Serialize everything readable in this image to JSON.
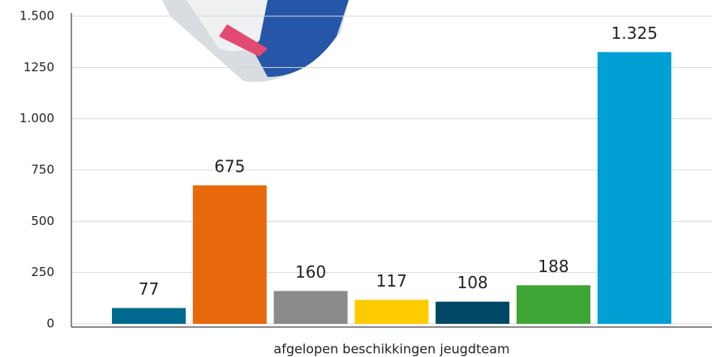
{
  "chart_data": {
    "type": "bar",
    "x_label": "afgelopen beschikkingen jeugdteam",
    "categories": [
      null,
      null,
      null,
      null,
      null,
      null,
      null
    ],
    "values": [
      77,
      675,
      160,
      117,
      108,
      188,
      1325
    ],
    "value_labels": [
      "77",
      "675",
      "160",
      "117",
      "108",
      "188",
      "1.325"
    ],
    "colors": [
      "#006a8e",
      "#e8680c",
      "#8a8a8a",
      "#fdcb00",
      "#004766",
      "#3fa535",
      "#009fd4"
    ],
    "ylim": [
      0,
      1500
    ],
    "yticks": [
      0,
      250,
      500,
      750,
      {
        "value": 1000,
        "label": "1.000"
      },
      1250,
      {
        "value": 1500,
        "label": "1.500"
      }
    ],
    "grid": true
  }
}
